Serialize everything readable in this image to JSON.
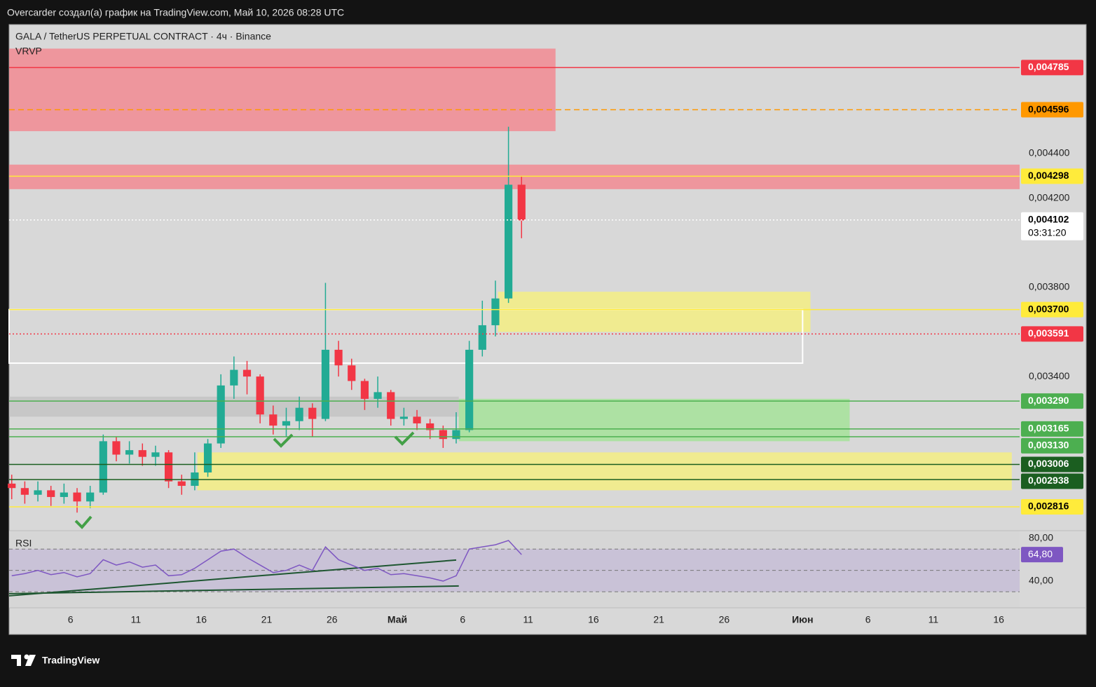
{
  "header": {
    "text": "Overcarder создал(а) график на TradingView.com, Май 10, 2026 08:28 UTC"
  },
  "footer": {
    "brand": "TradingView"
  },
  "chart_data": [
    {
      "type": "candlestick",
      "title": "GALA / TetherUS PERPETUAL CONTRACT · 4ч · Binance",
      "indicator": "VRVP",
      "x": [
        0,
        1,
        2,
        3,
        4,
        5,
        6,
        7,
        8,
        9,
        10,
        11,
        12,
        13,
        14,
        15,
        16,
        17,
        18,
        19,
        20,
        21,
        22,
        23,
        24,
        25,
        26,
        27,
        28,
        29,
        30,
        31,
        32,
        33,
        34,
        35,
        36,
        37,
        38,
        39
      ],
      "open": [
        0.00292,
        0.0029,
        0.00287,
        0.00289,
        0.00286,
        0.00288,
        0.00284,
        0.00288,
        0.00311,
        0.00305,
        0.00307,
        0.00304,
        0.00306,
        0.00293,
        0.00291,
        0.00297,
        0.0031,
        0.00336,
        0.00343,
        0.0034,
        0.00323,
        0.00318,
        0.0032,
        0.00326,
        0.00321,
        0.00352,
        0.00345,
        0.00338,
        0.0033,
        0.00333,
        0.00321,
        0.00322,
        0.00319,
        0.00316,
        0.00312,
        0.00316,
        0.00352,
        0.00363,
        0.00375,
        0.00426
      ],
      "high": [
        0.00296,
        0.00293,
        0.00293,
        0.00291,
        0.00292,
        0.0029,
        0.00291,
        0.00314,
        0.00313,
        0.00311,
        0.0031,
        0.00309,
        0.00307,
        0.00296,
        0.00306,
        0.00312,
        0.00341,
        0.00349,
        0.00347,
        0.00341,
        0.00327,
        0.00326,
        0.00331,
        0.00328,
        0.00382,
        0.00356,
        0.00348,
        0.00339,
        0.0034,
        0.00334,
        0.00326,
        0.00325,
        0.00321,
        0.00318,
        0.00324,
        0.00356,
        0.00374,
        0.00383,
        0.00452,
        0.0043
      ],
      "low": [
        0.00285,
        0.00283,
        0.00284,
        0.00282,
        0.00283,
        0.00279,
        0.00281,
        0.00287,
        0.00302,
        0.00301,
        0.003,
        0.003,
        0.0029,
        0.00287,
        0.00289,
        0.00295,
        0.00308,
        0.0033,
        0.00332,
        0.00319,
        0.00314,
        0.00313,
        0.00316,
        0.00313,
        0.0032,
        0.0034,
        0.00334,
        0.00325,
        0.00326,
        0.00318,
        0.00318,
        0.00316,
        0.00312,
        0.00308,
        0.0031,
        0.00315,
        0.00349,
        0.00358,
        0.00373,
        0.00402
      ],
      "close": [
        0.0029,
        0.00287,
        0.00289,
        0.00286,
        0.00288,
        0.00284,
        0.00288,
        0.00311,
        0.00305,
        0.00307,
        0.00304,
        0.00306,
        0.00293,
        0.00291,
        0.00297,
        0.0031,
        0.00336,
        0.00343,
        0.0034,
        0.00323,
        0.00318,
        0.0032,
        0.00326,
        0.00321,
        0.00352,
        0.00345,
        0.00338,
        0.0033,
        0.00333,
        0.00321,
        0.00322,
        0.00319,
        0.00316,
        0.00312,
        0.00316,
        0.00352,
        0.00363,
        0.00375,
        0.00426,
        0.0041
      ],
      "up_color": "#22ab94",
      "down_color": "#f23645",
      "xlim": [
        0.3,
        77.6
      ],
      "ylim": [
        0.002709,
        0.004978
      ],
      "yticks": [
        {
          "value": 0.0044,
          "label": "0,004400"
        },
        {
          "value": 0.0042,
          "label": "0,004200"
        },
        {
          "value": 0.0038,
          "label": "0,003800"
        },
        {
          "value": 0.0034,
          "label": "0,003400"
        }
      ],
      "zones": [
        {
          "top": 0.00487,
          "bottom": 0.0045,
          "x0": 0.3,
          "x1": 42.1,
          "color": "#f28b93"
        },
        {
          "top": 0.00435,
          "bottom": 0.00424,
          "x0": 0.3,
          "x1": 77.6,
          "color": "#f28b93"
        },
        {
          "top": 0.00378,
          "bottom": 0.0036,
          "x0": 37.7,
          "x1": 61.6,
          "color": "#f5ee84"
        },
        {
          "top": 0.00331,
          "bottom": 0.00322,
          "x0": 0.3,
          "x1": 34.7,
          "color": "#c4c4c4"
        },
        {
          "top": 0.0033,
          "bottom": 0.00311,
          "x0": 34.7,
          "x1": 64.6,
          "color": "#a6e39a"
        },
        {
          "top": 0.00306,
          "bottom": 0.00289,
          "x0": 14.7,
          "x1": 77.0,
          "color": "#f5ee84"
        }
      ],
      "boxes": [
        {
          "top": 0.0037,
          "bottom": 0.00346,
          "x0": 0.3,
          "x1": 61.0,
          "color": "#ffffff"
        }
      ],
      "levels": [
        {
          "value": 0.004785,
          "label": "0,004785",
          "color": "#f23645",
          "text_color": "#ffffff",
          "style": "solid"
        },
        {
          "value": 0.004596,
          "label": "0,004596",
          "color": "#ff9800",
          "text_color": "#000000",
          "style": "dashed"
        },
        {
          "value": 0.004298,
          "label": "0,004298",
          "color": "#ffeb3b",
          "text_color": "#000000",
          "style": "solid"
        },
        {
          "value": 0.004102,
          "label": "0,004102",
          "countdown": "03:31:20",
          "color": "#ffffff",
          "text_color": "#000000",
          "style": "dotted"
        },
        {
          "value": 0.0037,
          "label": "0,003700",
          "color": "#ffeb3b",
          "text_color": "#000000",
          "style": "solid"
        },
        {
          "value": 0.003591,
          "label": "0,003591",
          "color": "#f23645",
          "text_color": "#ffffff",
          "style": "dotted"
        },
        {
          "value": 0.00329,
          "label": "0,003290",
          "color": "#4caf50",
          "text_color": "#ffffff",
          "style": "solid"
        },
        {
          "value": 0.003165,
          "label": "0,003165",
          "color": "#4caf50",
          "text_color": "#ffffff",
          "style": "solid"
        },
        {
          "value": 0.00313,
          "label": "0,003130",
          "color": "#4caf50",
          "text_color": "#ffffff",
          "style": "solid"
        },
        {
          "value": 0.003006,
          "label": "0,003006",
          "color": "#1b5e20",
          "text_color": "#ffffff",
          "style": "solid"
        },
        {
          "value": 0.002938,
          "label": "0,002938",
          "color": "#1b5e20",
          "text_color": "#ffffff",
          "style": "solid"
        },
        {
          "value": 0.002816,
          "label": "0,002816",
          "color": "#ffeb3b",
          "text_color": "#000000",
          "style": "solid"
        }
      ]
    },
    {
      "type": "line",
      "title": "RSI",
      "x": [
        0,
        1,
        2,
        3,
        4,
        5,
        6,
        7,
        8,
        9,
        10,
        11,
        12,
        13,
        14,
        15,
        16,
        17,
        18,
        19,
        20,
        21,
        22,
        23,
        24,
        25,
        26,
        27,
        28,
        29,
        30,
        31,
        32,
        33,
        34,
        35,
        36,
        37,
        38,
        39
      ],
      "values": [
        45,
        47,
        50,
        46,
        48,
        44,
        47,
        60,
        55,
        58,
        53,
        55,
        45,
        46,
        52,
        60,
        68,
        70,
        62,
        55,
        48,
        50,
        55,
        50,
        72,
        60,
        55,
        50,
        52,
        46,
        47,
        45,
        43,
        40,
        45,
        70,
        72,
        74,
        78,
        64.8
      ],
      "value_labels": [
        null,
        null,
        null,
        null,
        null,
        null,
        null,
        null,
        null,
        null,
        null,
        null,
        null,
        null,
        null,
        null,
        null,
        null,
        null,
        null,
        null,
        null,
        null,
        null,
        null,
        null,
        null,
        null,
        null,
        null,
        null,
        null,
        null,
        null,
        null,
        null,
        null,
        null,
        null,
        "64,80"
      ],
      "color": "#7e57c2",
      "xlim": [
        0.3,
        77.6
      ],
      "ylim": [
        15,
        87.2
      ],
      "yticks": [
        {
          "value": 80,
          "label": "80,00"
        },
        {
          "value": 40,
          "label": "40,00"
        }
      ],
      "bands": [
        70,
        50,
        30
      ],
      "trendlines": [
        {
          "x1": 0.3,
          "y1": 26.2,
          "x2": 34.5,
          "y2": 59.7,
          "color": "#1e5631"
        },
        {
          "x1": 0.3,
          "y1": 28.2,
          "x2": 34.7,
          "y2": 35.4,
          "color": "#1e5631"
        }
      ],
      "xticks": [
        {
          "value": 5,
          "label": "6"
        },
        {
          "value": 10,
          "label": "11"
        },
        {
          "value": 15,
          "label": "16"
        },
        {
          "value": 20,
          "label": "21"
        },
        {
          "value": 25,
          "label": "26"
        },
        {
          "value": 30,
          "label": "Май"
        },
        {
          "value": 35,
          "label": "6"
        },
        {
          "value": 40,
          "label": "11"
        },
        {
          "value": 45,
          "label": "16"
        },
        {
          "value": 50,
          "label": "21"
        },
        {
          "value": 55,
          "label": "26"
        },
        {
          "value": 61,
          "label": "Июн"
        },
        {
          "value": 66,
          "label": "6"
        },
        {
          "value": 71,
          "label": "11"
        },
        {
          "value": 76,
          "label": "16"
        }
      ]
    }
  ]
}
